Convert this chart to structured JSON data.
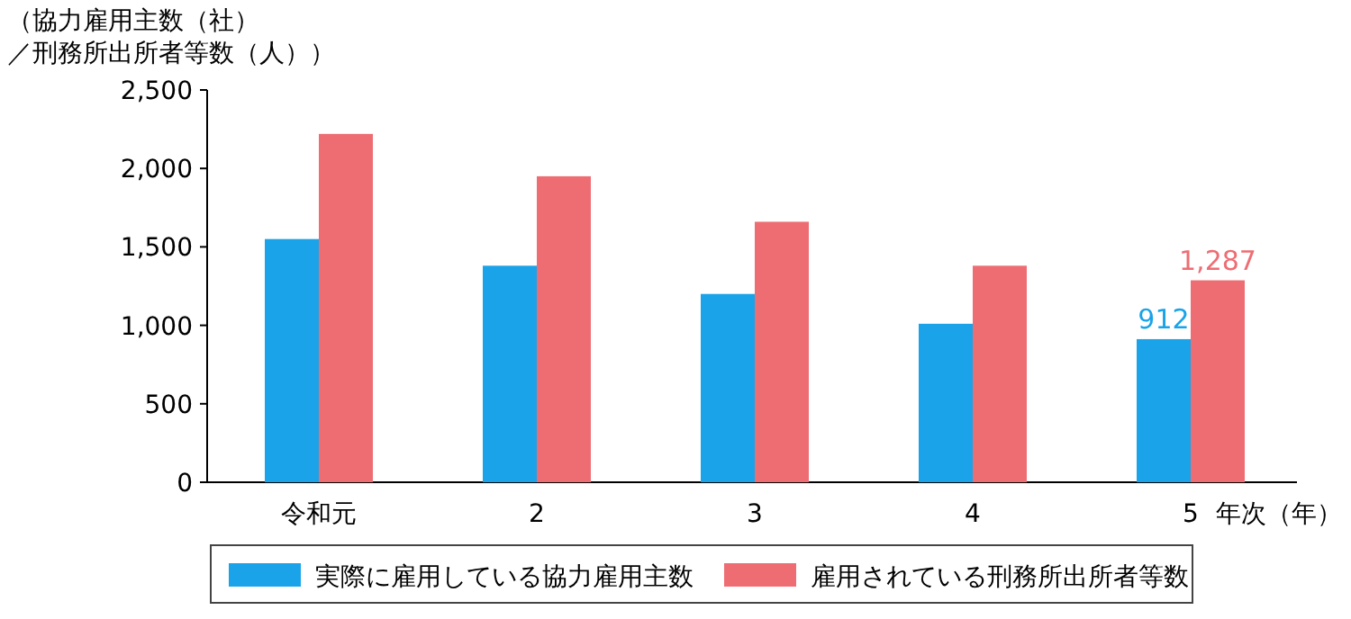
{
  "chart_data": {
    "type": "bar",
    "ylabel": [
      "（協力雇用主数（社）",
      "／刑務所出所者等数（人））"
    ],
    "xlabel": "年次（年）",
    "categories": [
      "令和元",
      "2",
      "3",
      "4",
      "5"
    ],
    "series": [
      {
        "name": "実際に雇用している協力雇用主数",
        "color": "#1aa3e8",
        "values": [
          1550,
          1380,
          1200,
          1010,
          912
        ],
        "value_labels": [
          null,
          null,
          null,
          null,
          "912"
        ]
      },
      {
        "name": "雇用されている刑務所出所者等数",
        "color": "#ee6d73",
        "values": [
          2220,
          1950,
          1660,
          1380,
          1287
        ],
        "value_labels": [
          null,
          null,
          null,
          null,
          "1,287"
        ]
      }
    ],
    "ylim": [
      0,
      2500
    ],
    "yticks": [
      0,
      {
        "value": 500,
        "label": "500"
      },
      {
        "value": 1000,
        "label": "1,000"
      },
      {
        "value": 1500,
        "label": "1,500"
      },
      {
        "value": 2000,
        "label": "2,000"
      },
      {
        "value": 2500,
        "label": "2,500"
      }
    ],
    "grid": false,
    "legend": "bottom"
  }
}
